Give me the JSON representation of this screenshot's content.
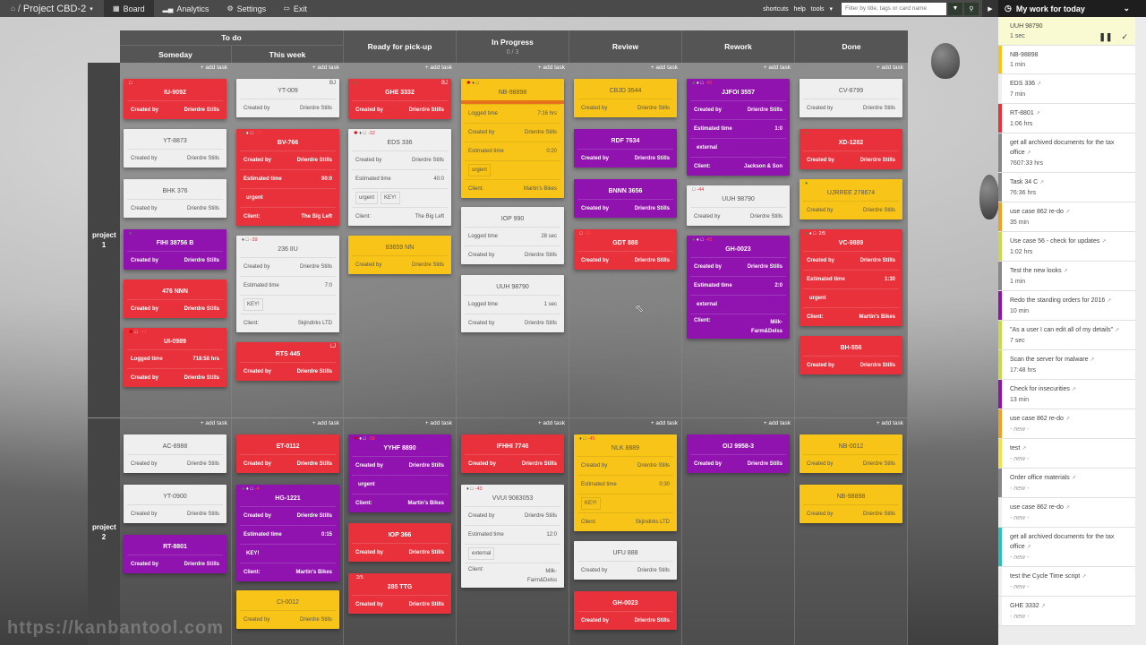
{
  "topbar": {
    "project": "Project CBD-2",
    "nav": [
      {
        "label": "Board",
        "icon": "board-icon",
        "active": true
      },
      {
        "label": "Analytics",
        "icon": "analytics-icon",
        "active": false
      },
      {
        "label": "Settings",
        "icon": "gear-icon",
        "active": false
      },
      {
        "label": "Exit",
        "icon": "exit-icon",
        "active": false
      }
    ],
    "links": [
      "shortcuts",
      "help",
      "tools"
    ],
    "filter_placeholder": "Filter by title, tags or card name"
  },
  "panel": {
    "title": "My work for today",
    "items": [
      {
        "title": "UUH 98790",
        "time": "1 sec",
        "color": "#fafad2",
        "active": true
      },
      {
        "title": "NB-98898",
        "time": "1 min",
        "color": "#f7c417"
      },
      {
        "title": "EDS 336",
        "time": "7 min",
        "color": "#efefef",
        "ext": true
      },
      {
        "title": "RT-8801",
        "time": "1:06 hrs",
        "color": "#e8313a",
        "ext": true
      },
      {
        "title": "get all archived documents for the tax office",
        "time": "7607:33 hrs",
        "color": "#888888",
        "ext": true
      },
      {
        "title": "Task 34 C",
        "time": "76:36 hrs",
        "color": "#888888",
        "ext": true
      },
      {
        "title": "use case 862 re-do",
        "time": "35 min",
        "color": "#f0a020",
        "ext": true
      },
      {
        "title": "Use case 56 - check for updates",
        "time": "1:02 hrs",
        "color": "#c8d94a",
        "ext": true
      },
      {
        "title": "Test the new looks",
        "time": "1 min",
        "color": "#888888",
        "ext": true
      },
      {
        "title": "Redo the standing orders for 2016",
        "time": "10 min",
        "color": "#9013b0",
        "ext": true
      },
      {
        "title": "\"As a user I can edit all of my details\"",
        "time": "7 sec",
        "color": "#c8d94a",
        "ext": true
      },
      {
        "title": "Scan the server for malware",
        "time": "17:48 hrs",
        "color": "#c8d94a",
        "ext": true
      },
      {
        "title": "Check for insecurities",
        "time": "13 min",
        "color": "#9013b0",
        "ext": true
      },
      {
        "title": "use case 862 re-do",
        "time": "- new -",
        "color": "#f0a020",
        "ext": true,
        "new": true
      },
      {
        "title": "test",
        "time": "- new -",
        "color": "#f5e04a",
        "ext": true,
        "new": true
      },
      {
        "title": "Order office materials",
        "time": "- new -",
        "color": "#888888",
        "ext": true,
        "new": true
      },
      {
        "title": "use case 862 re-do",
        "time": "- new -",
        "color": "#efefef",
        "ext": true,
        "new": true
      },
      {
        "title": "get all archived documents for the tax office",
        "time": "- new -",
        "color": "#2bbfc4",
        "ext": true,
        "new": true
      },
      {
        "title": "test the Cycle Time script",
        "time": "- new -",
        "color": "#efefef",
        "ext": true,
        "new": true
      },
      {
        "title": "GHE 3332",
        "time": "- new -",
        "color": "#efefef",
        "ext": true,
        "new": true
      }
    ]
  },
  "board": {
    "columns": {
      "todo": "To do",
      "someday": "Someday",
      "this_week": "This week",
      "ready": "Ready for pick-up",
      "in_progress": "In Progress",
      "in_progress_limit": "0 / 3",
      "review": "Review",
      "rework": "Rework",
      "done": "Done"
    },
    "add_task": "+ add task",
    "swimlanes": [
      "project 1",
      "project 2"
    ],
    "watermark": "https://kanbantool.com"
  },
  "cards": {
    "c1": {
      "title": "IU-9092",
      "created_label": "Created by",
      "created_by": "Drierdre Stills"
    },
    "c2": {
      "title": "YT-8873",
      "created_label": "Created by",
      "created_by": "Drierdre Stills"
    },
    "c3": {
      "title": "BHK 376",
      "created_label": "Created by",
      "created_by": "Drierdre Stills"
    },
    "c4": {
      "title": "FIHI 38756 B",
      "created_label": "Created by",
      "created_by": "Drierdre Stills"
    },
    "c5": {
      "title": "476 NNN",
      "created_label": "Created by",
      "created_by": "Drierdre Stills"
    },
    "c6": {
      "title": "UI-0989",
      "overdue": "-44",
      "logged_label": "Logged time",
      "logged": "718:58 hrs",
      "created_label": "Created by",
      "created_by": "Drierdre Stills"
    },
    "c7": {
      "title": "YT-009",
      "initials": "BJ",
      "created_label": "Created by",
      "created_by": "Drierdre Stills"
    },
    "c8": {
      "title": "BV-766",
      "overdue": "-71",
      "created_label": "Created by",
      "created_by": "Drierdre Stills",
      "est_label": "Estimated time",
      "est": "90:0",
      "tag1": "urgent",
      "client_label": "Client:",
      "client": "The Big Left"
    },
    "c9": {
      "title": "236 IIU",
      "overdue": "-39",
      "created_label": "Created by",
      "created_by": "Drierdre Stills",
      "est_label": "Estimated time",
      "est": "7:0",
      "tag1": "KEY!",
      "client_label": "Client:",
      "client": "Skjindirks LTD"
    },
    "c10": {
      "title": "RTS 445",
      "initials": "LJ",
      "created_label": "Created by",
      "created_by": "Drierdre Stills"
    },
    "c11": {
      "title": "GHE 3332",
      "initials": "BJ",
      "created_label": "Created by",
      "created_by": "Drierdre Stills"
    },
    "c12": {
      "title": "EDS 336",
      "overdue": "-12",
      "created_label": "Created by",
      "created_by": "Drierdre Stills",
      "est_label": "Estimated time",
      "est": "40:0",
      "tag1": "urgent",
      "tag2": "KEY!",
      "client_label": "Client:",
      "client": "The Big Left"
    },
    "c13": {
      "title": "83659 NN",
      "created_label": "Created by",
      "created_by": "Drierdre Stills"
    },
    "c14": {
      "title": "NB-98898",
      "logged_label": "Logged time",
      "logged": "7:16 hrs",
      "created_label": "Created by",
      "created_by": "Drierdre Stills",
      "est_label": "Estimated time",
      "est": "0:20",
      "tag1": "urgent",
      "client_label": "Client:",
      "client": "Martin's Bikes"
    },
    "c15": {
      "title": "IOP 990",
      "logged_label": "Logged time",
      "logged": "28 sec",
      "created_label": "Created by",
      "created_by": "Drierdre Stills"
    },
    "c16": {
      "title": "UUH 98790",
      "logged_label": "Logged time",
      "logged": "1 sec",
      "created_label": "Created by",
      "created_by": "Drierdre Stills"
    },
    "c17": {
      "title": "CBJD 3544",
      "created_label": "Created by",
      "created_by": "Drierdre Stills"
    },
    "c18": {
      "title": "RDF 7634",
      "created_label": "Created by",
      "created_by": "Drierdre Stills"
    },
    "c19": {
      "title": "BNNN 3656",
      "created_label": "Created by",
      "created_by": "Drierdre Stills"
    },
    "c20": {
      "title": "GDT 888",
      "overdue": "-45",
      "created_label": "Created by",
      "created_by": "Drierdre Stills"
    },
    "c21": {
      "title": "JJFOI 3557",
      "overdue": "-45",
      "created_label": "Created by",
      "created_by": "Drierdre Stills",
      "est_label": "Estimated time",
      "est": "1:0",
      "tag1": "external",
      "client_label": "Client:",
      "client": "Jackson & Son"
    },
    "c22": {
      "title": "UUH 98790",
      "overdue": "-44",
      "created_label": "Created by",
      "created_by": "Drierdre Stills"
    },
    "c23": {
      "title": "GH-0023",
      "overdue": "-45",
      "created_label": "Created by",
      "created_by": "Drierdre Stills",
      "est_label": "Estimated time",
      "est": "2:0",
      "tag1": "external",
      "client_label": "Client:",
      "client": "Milk-Farm&Delss"
    },
    "c24": {
      "title": "CV-8799",
      "created_label": "Created by",
      "created_by": "Drierdre Stills"
    },
    "c25": {
      "title": "XD-1282",
      "created_label": "Created by",
      "created_by": "Drierdre Stills"
    },
    "c26": {
      "title": "UJRREE 278674",
      "created_label": "Created by",
      "created_by": "Drierdre Stills"
    },
    "c27": {
      "title": "VC-9889",
      "subtasks": "2/5",
      "created_label": "Created by",
      "created_by": "Drierdre Stills",
      "est_label": "Estimated time",
      "est": "1:30",
      "tag1": "urgent",
      "client_label": "Client:",
      "client": "Martin's Bikes"
    },
    "c28": {
      "title": "BH-556",
      "created_label": "Created by",
      "created_by": "Drierdre Stills"
    },
    "d1": {
      "title": "AC-8988",
      "created_label": "Created by",
      "created_by": "Drierdre Stills"
    },
    "d2": {
      "title": "YT-0900",
      "created_label": "Created by",
      "created_by": "Drierdre Stills"
    },
    "d3": {
      "title": "RT-8801",
      "created_label": "Created by",
      "created_by": "Drierdre Stills"
    },
    "d4": {
      "title": "ET-0112",
      "created_label": "Created by",
      "created_by": "Drierdre Stills"
    },
    "d5": {
      "title": "HG-1221",
      "overdue": "-4",
      "created_label": "Created by",
      "created_by": "Drierdre Stills",
      "est_label": "Estimated time",
      "est": "0:15",
      "tag1": "KEY!",
      "client_label": "Client:",
      "client": "Martin's Bikes"
    },
    "d6": {
      "title": "CI-0012",
      "created_label": "Created by",
      "created_by": "Drierdre Stills"
    },
    "d7": {
      "title": "YYHF 8890",
      "overdue": "-38",
      "created_label": "Created by",
      "created_by": "Drierdre Stills",
      "tag1": "urgent",
      "client_label": "Client:",
      "client": "Martin's Bikes"
    },
    "d8": {
      "title": "IOP 366",
      "created_label": "Created by",
      "created_by": "Drierdre Stills"
    },
    "d9": {
      "title": "285 TTG",
      "subtasks": "2/5",
      "created_label": "Created by",
      "created_by": "Drierdre Stills"
    },
    "d10": {
      "title": "IFHHI 7746",
      "created_label": "Created by",
      "created_by": "Drierdre Stills"
    },
    "d11": {
      "title": "VVUI 9083053",
      "overdue": "-43",
      "created_label": "Created by",
      "created_by": "Drierdre Stills",
      "est_label": "Estimated time",
      "est": "12:0",
      "tag1": "external",
      "client_label": "Client:",
      "client": "Milk-Farm&Delss"
    },
    "d12": {
      "title": "NLK 8889",
      "overdue": "-45",
      "created_label": "Created by",
      "created_by": "Drierdre Stills",
      "est_label": "Estimated time",
      "est": "0:30",
      "tag1": "KEY!",
      "client_label": "Client:",
      "client": "Skjindirks LTD"
    },
    "d13": {
      "title": "UFU 888",
      "created_label": "Created by",
      "created_by": "Drierdre Stills"
    },
    "d14": {
      "title": "GH-0023",
      "created_label": "Created by",
      "created_by": "Drierdre Stills"
    },
    "d15": {
      "title": "OIJ 9958-3",
      "created_label": "Created by",
      "created_by": "Drierdre Stills"
    },
    "d16": {
      "title": "NB-0012",
      "created_label": "Created by",
      "created_by": "Drierdre Stills"
    },
    "d17": {
      "title": "NB-98898",
      "created_label": "Created by",
      "created_by": "Drierdre Stills"
    }
  }
}
